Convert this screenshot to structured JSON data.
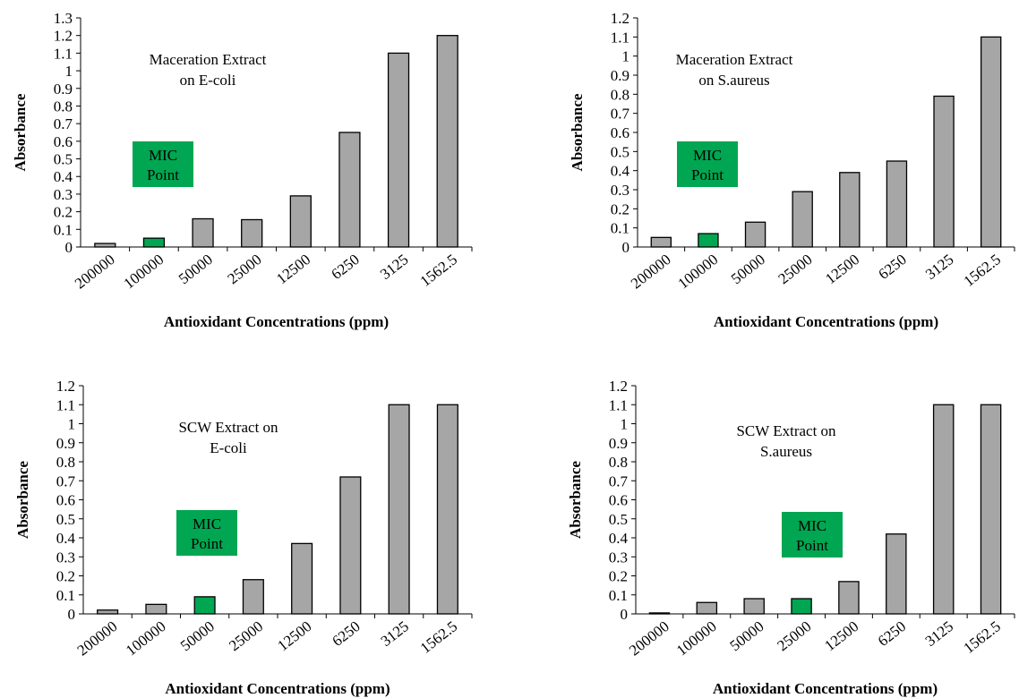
{
  "chart_data": [
    {
      "type": "bar",
      "title": [
        "Maceration Extract",
        "on E-coli"
      ],
      "xlabel": "Antioxidant  Concentrations (ppm)",
      "ylabel": "Absorbance",
      "categories": [
        "200000",
        "100000",
        "50000",
        "25000",
        "12500",
        "6250",
        "3125",
        "1562.5"
      ],
      "values": [
        0.02,
        0.05,
        0.16,
        0.155,
        0.29,
        0.65,
        1.1,
        1.2
      ],
      "colors": [
        "#a6a6a6",
        "#00a651",
        "#a6a6a6",
        "#a6a6a6",
        "#a6a6a6",
        "#a6a6a6",
        "#a6a6a6",
        "#a6a6a6"
      ],
      "annotation": [
        "MIC",
        "Point"
      ],
      "annotation_color": "#00a651",
      "ylim": [
        0,
        1.3
      ],
      "yticks": [
        0,
        0.1,
        0.2,
        0.3,
        0.4,
        0.5,
        0.6,
        0.7,
        0.8,
        0.9,
        1,
        1.1,
        1.2,
        1.3
      ]
    },
    {
      "type": "bar",
      "title": [
        "Maceration Extract",
        "on S.aureus"
      ],
      "xlabel": "Antioxidant  Concentrations (ppm)",
      "ylabel": "Absorbance",
      "categories": [
        "200000",
        "100000",
        "50000",
        "25000",
        "12500",
        "6250",
        "3125",
        "1562.5"
      ],
      "values": [
        0.05,
        0.07,
        0.13,
        0.29,
        0.39,
        0.45,
        0.79,
        1.1
      ],
      "colors": [
        "#a6a6a6",
        "#00a651",
        "#a6a6a6",
        "#a6a6a6",
        "#a6a6a6",
        "#a6a6a6",
        "#a6a6a6",
        "#a6a6a6"
      ],
      "annotation": [
        "MIC",
        "Point"
      ],
      "annotation_color": "#00a651",
      "ylim": [
        0,
        1.2
      ],
      "yticks": [
        0,
        0.1,
        0.2,
        0.3,
        0.4,
        0.5,
        0.6,
        0.7,
        0.8,
        0.9,
        1,
        1.1,
        1.2
      ]
    },
    {
      "type": "bar",
      "title": [
        "SCW Extract on",
        "E-coli"
      ],
      "xlabel": "Antioxidant  Concentrations (ppm)",
      "ylabel": "Absorbance",
      "categories": [
        "200000",
        "100000",
        "50000",
        "25000",
        "12500",
        "6250",
        "3125",
        "1562.5"
      ],
      "values": [
        0.02,
        0.05,
        0.09,
        0.18,
        0.37,
        0.72,
        1.1,
        1.1
      ],
      "colors": [
        "#a6a6a6",
        "#a6a6a6",
        "#00a651",
        "#a6a6a6",
        "#a6a6a6",
        "#a6a6a6",
        "#a6a6a6",
        "#a6a6a6"
      ],
      "annotation": [
        "MIC",
        "Point"
      ],
      "annotation_color": "#00a651",
      "ylim": [
        0,
        1.2
      ],
      "yticks": [
        0,
        0.1,
        0.2,
        0.3,
        0.4,
        0.5,
        0.6,
        0.7,
        0.8,
        0.9,
        1,
        1.1,
        1.2
      ]
    },
    {
      "type": "bar",
      "title": [
        "SCW Extract on",
        "S.aureus"
      ],
      "xlabel": "Antioxidant  Concentrations (ppm)",
      "ylabel": "Absorbance",
      "categories": [
        "200000",
        "100000",
        "50000",
        "25000",
        "12500",
        "6250",
        "3125",
        "1562.5"
      ],
      "values": [
        0.005,
        0.06,
        0.08,
        0.08,
        0.17,
        0.42,
        1.1,
        1.1
      ],
      "colors": [
        "#a6a6a6",
        "#a6a6a6",
        "#a6a6a6",
        "#00a651",
        "#a6a6a6",
        "#a6a6a6",
        "#a6a6a6",
        "#a6a6a6"
      ],
      "annotation": [
        "MIC",
        "Point"
      ],
      "annotation_color": "#00a651",
      "ylim": [
        0,
        1.2
      ],
      "yticks": [
        0,
        0.1,
        0.2,
        0.3,
        0.4,
        0.5,
        0.6,
        0.7,
        0.8,
        0.9,
        1,
        1.1,
        1.2
      ]
    }
  ]
}
